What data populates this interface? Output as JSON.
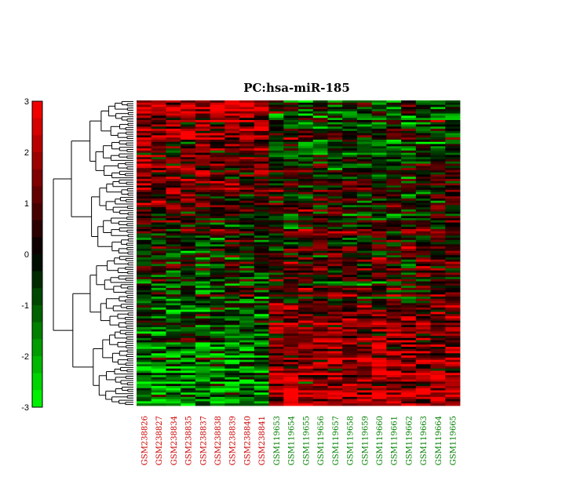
{
  "chart_data": {
    "type": "heatmap",
    "title": "PC:hsa-miR-185",
    "colorbar": {
      "min": -3,
      "max": 3,
      "ticks": [
        3,
        2,
        1,
        0,
        -1,
        -2,
        -3
      ],
      "tick_labels": [
        "3",
        "2",
        "1",
        "0",
        "-1",
        "-2",
        "-3"
      ],
      "low_color": "#00ff00",
      "mid_color": "#000000",
      "high_color": "#ff0000"
    },
    "dendrogram": "rows",
    "row_count": 140,
    "columns": [
      {
        "label": "GSM238826",
        "group": "red"
      },
      {
        "label": "GSM238827",
        "group": "red"
      },
      {
        "label": "GSM238834",
        "group": "red"
      },
      {
        "label": "GSM238835",
        "group": "red"
      },
      {
        "label": "GSM238837",
        "group": "red"
      },
      {
        "label": "GSM238838",
        "group": "red"
      },
      {
        "label": "GSM238839",
        "group": "red"
      },
      {
        "label": "GSM238840",
        "group": "red"
      },
      {
        "label": "GSM238841",
        "group": "red"
      },
      {
        "label": "GSM119653",
        "group": "green"
      },
      {
        "label": "GSM119654",
        "group": "green"
      },
      {
        "label": "GSM119655",
        "group": "green"
      },
      {
        "label": "GSM119656",
        "group": "green"
      },
      {
        "label": "GSM119657",
        "group": "green"
      },
      {
        "label": "GSM119658",
        "group": "green"
      },
      {
        "label": "GSM119659",
        "group": "green"
      },
      {
        "label": "GSM119660",
        "group": "green"
      },
      {
        "label": "GSM119661",
        "group": "green"
      },
      {
        "label": "GSM119662",
        "group": "green"
      },
      {
        "label": "GSM119663",
        "group": "green"
      },
      {
        "label": "GSM119664",
        "group": "green"
      },
      {
        "label": "GSM119665",
        "group": "green"
      }
    ],
    "label_colors": {
      "red": "#cc0000",
      "green": "#008000"
    },
    "pattern": {
      "description": "upper rows high in GSM2388xx samples; lower rows high in GSM1196xx samples",
      "group_a_top_mean": 2.0,
      "group_a_bottom_mean": -2.0,
      "group_b_top_mean": -0.8,
      "group_b_bottom_mean": 2.0
    }
  }
}
